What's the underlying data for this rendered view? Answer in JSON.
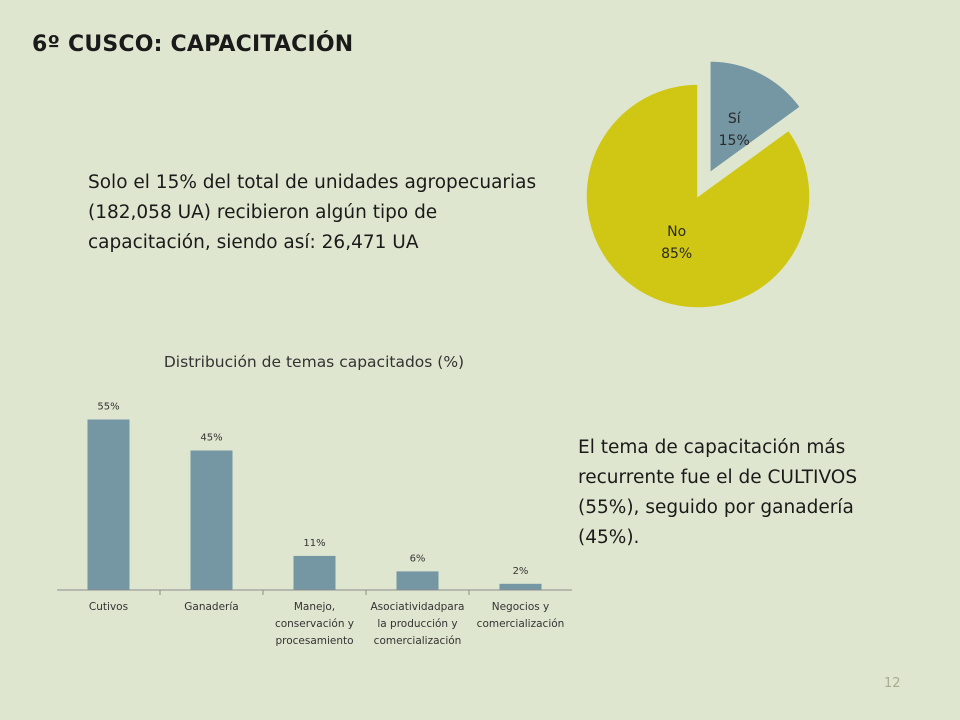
{
  "slide": {
    "title": "6º CUSCO:  CAPACITACIÓN",
    "intro": "Solo el 15% del total de unidades agropecuarias (182,058 UA) recibieron algún tipo de capacitación, siendo así: 26,471 UA",
    "summary": "El tema de capacitación más recurrente fue el de CULTIVOS (55%), seguido por ganadería (45%).",
    "page_number": "12"
  },
  "chart_data": [
    {
      "type": "pie",
      "title": "",
      "exploded": "Sí",
      "slices": [
        {
          "label": "Sí",
          "value": 15,
          "value_label": "15%",
          "color": "#7596a3"
        },
        {
          "label": "No",
          "value": 85,
          "value_label": "85%",
          "color": "#d0c714"
        }
      ]
    },
    {
      "type": "bar",
      "title": "Distribución de temas capacitados (%)",
      "xlabel": "",
      "ylabel": "",
      "ylim": [
        0,
        60
      ],
      "grid": false,
      "bar_color": "#7596a3",
      "categories": [
        [
          "Cutivos"
        ],
        [
          "Ganadería"
        ],
        [
          "Manejo,",
          "conservación y",
          "procesamiento"
        ],
        [
          "Asociatividadpara",
          "la producción y",
          "comercialización"
        ],
        [
          "Negocios y",
          "comercialización"
        ]
      ],
      "values": [
        55,
        45,
        11,
        6,
        2
      ],
      "value_labels": [
        "55%",
        "45%",
        "11%",
        "6%",
        "2%"
      ]
    }
  ]
}
